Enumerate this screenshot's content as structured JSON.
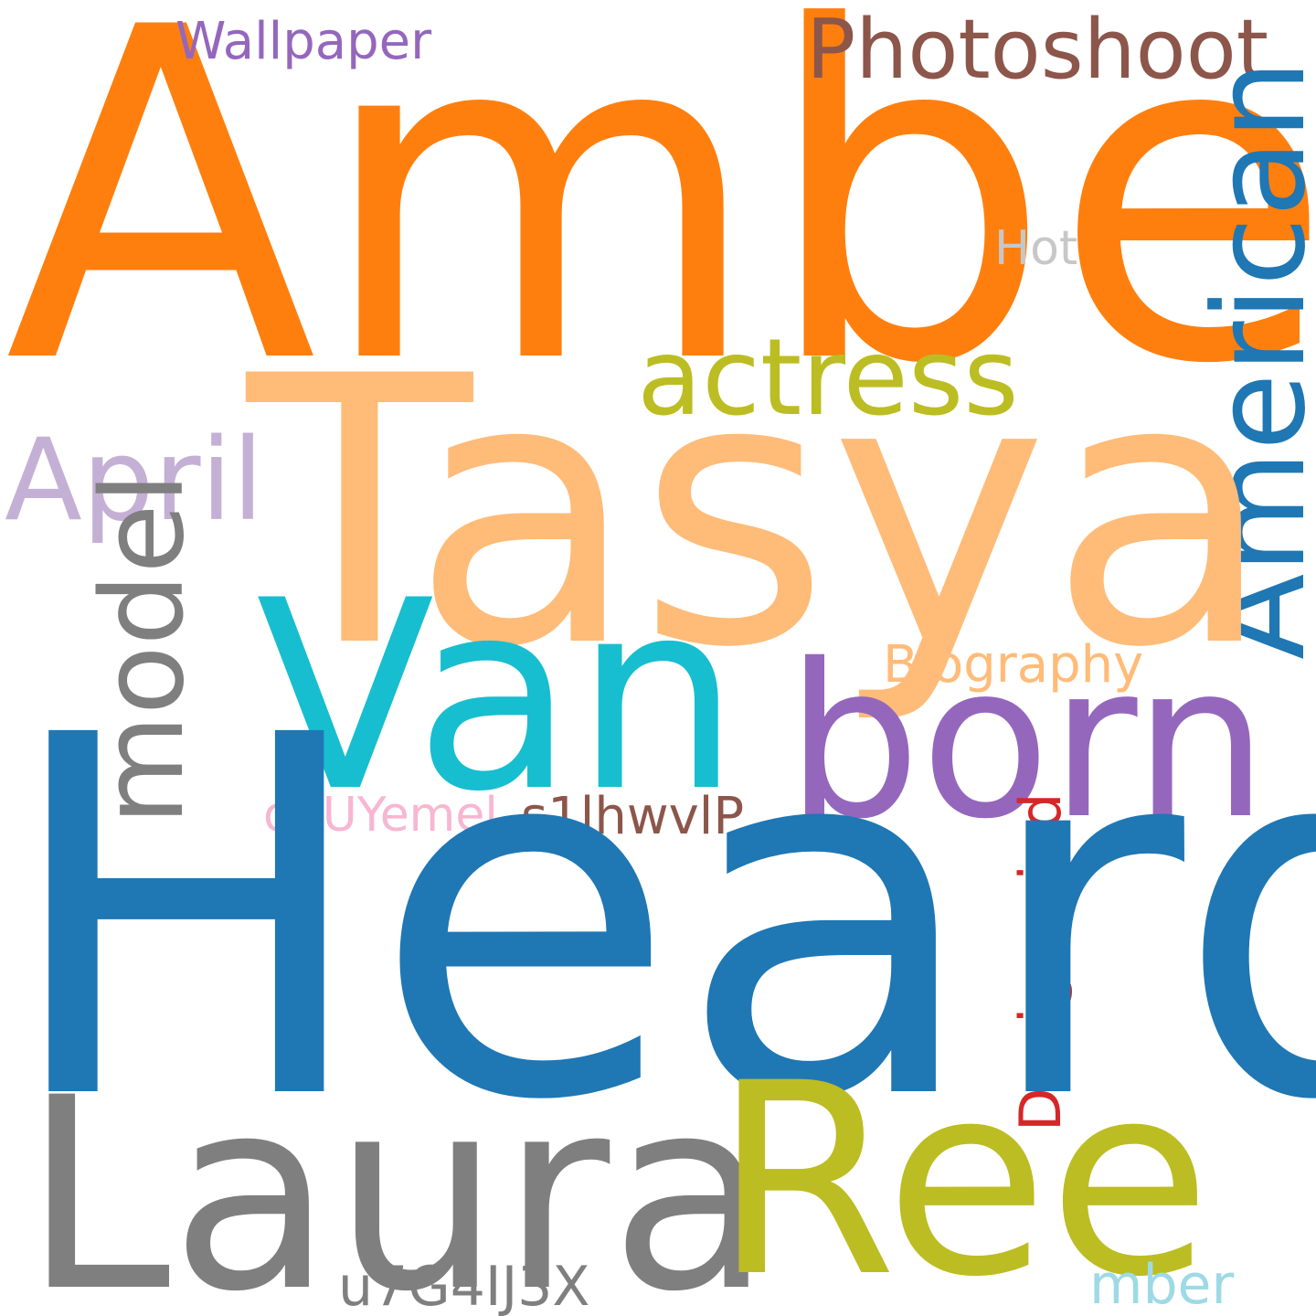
{
  "words": {
    "amber": {
      "text": "Amber",
      "color": "#ff7f0e"
    },
    "photoshoot": {
      "text": "Photoshoot",
      "color": "#8c564b"
    },
    "wallpaper": {
      "text": "Wallpaper",
      "color": "#9467bd"
    },
    "hot": {
      "text": "Hot",
      "color": "#c7c7c7"
    },
    "american": {
      "text": "American",
      "color": "#1f77b4"
    },
    "actress": {
      "text": "actress",
      "color": "#bcbd22"
    },
    "tasya": {
      "text": "Tasya",
      "color": "#ffbb78"
    },
    "april": {
      "text": "April",
      "color": "#c5b0d5"
    },
    "model": {
      "text": "model",
      "color": "#7f7f7f"
    },
    "van": {
      "text": "Van",
      "color": "#17becf"
    },
    "biography": {
      "text": "Biography",
      "color": "#ffbb78"
    },
    "born": {
      "text": "born",
      "color": "#9467bd"
    },
    "ohuyemel": {
      "text": "ohUYemel",
      "color": "#f7b6d2"
    },
    "s1lhwvlp": {
      "text": "s1lhwvlP",
      "color": "#8c564b"
    },
    "designmind": {
      "text": "Designmind",
      "color": "#d62728"
    },
    "heard": {
      "text": "Heard",
      "color": "#1f77b4"
    },
    "laura": {
      "text": "Laura",
      "color": "#7f7f7f"
    },
    "ree": {
      "text": "Ree",
      "color": "#bcbd22"
    },
    "u7g4ij3x": {
      "text": "u7G4IJ3X",
      "color": "#7f7f7f"
    },
    "mber": {
      "text": "mber",
      "color": "#9edae5"
    }
  }
}
